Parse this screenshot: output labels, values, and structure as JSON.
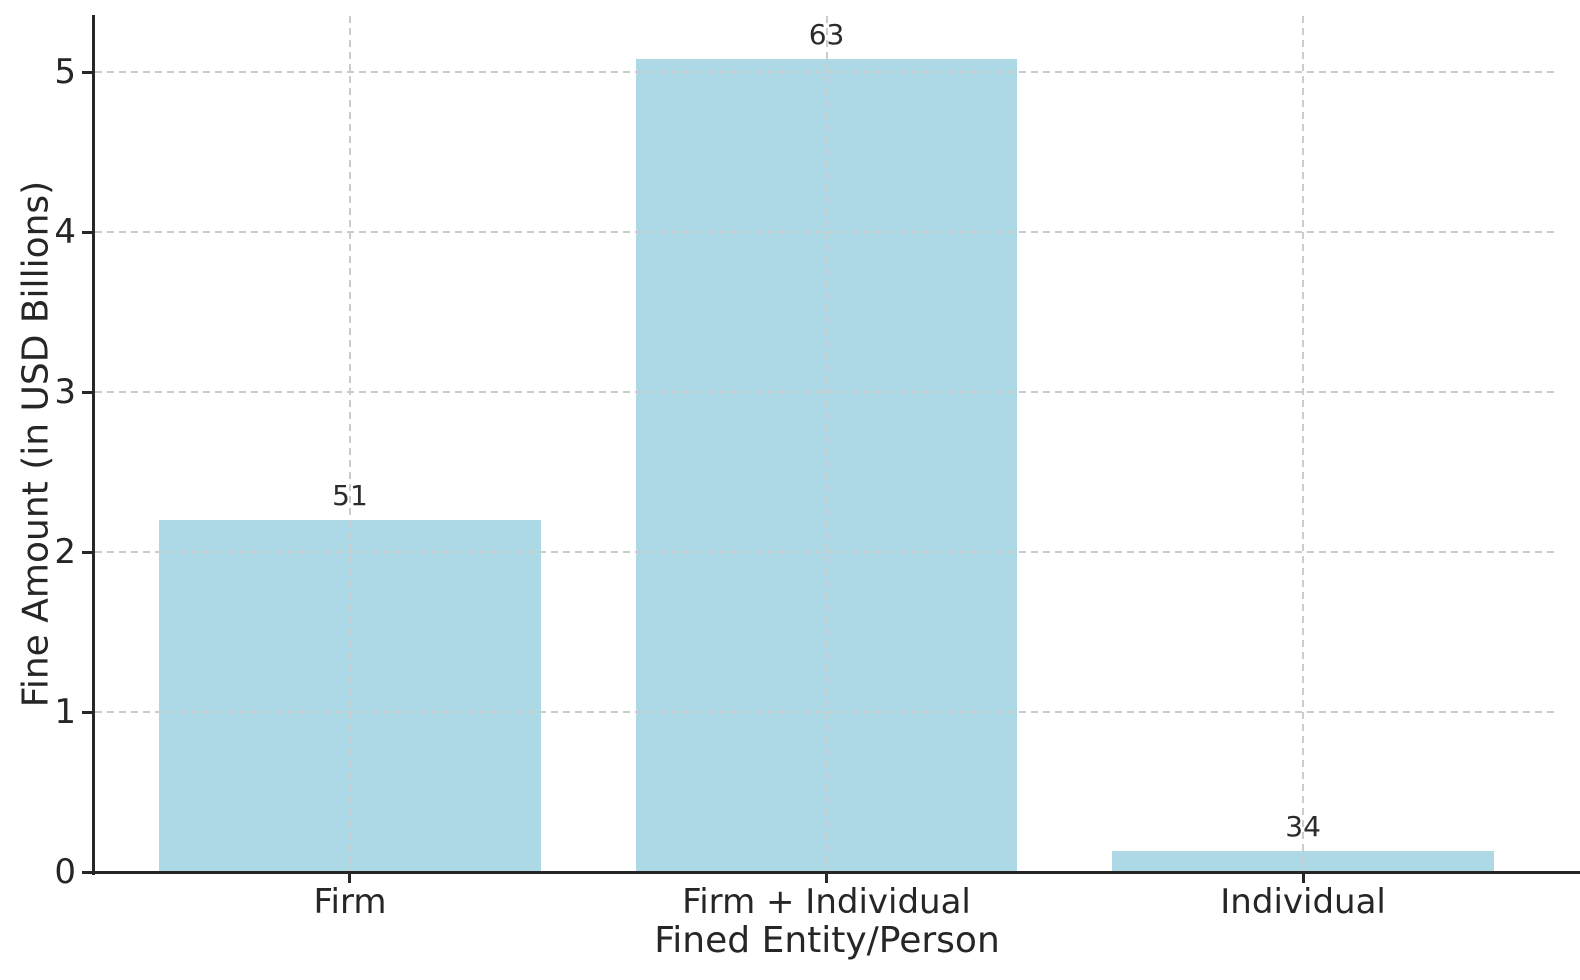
{
  "chart_data": {
    "type": "bar",
    "title": "",
    "xlabel": "Fined Entity/Person",
    "ylabel": "Fine Amount (in USD Billions)",
    "categories": [
      "Firm",
      "Firm + Individual",
      "Individual"
    ],
    "values": [
      2.2,
      5.08,
      0.13
    ],
    "bar_labels": [
      "51",
      "63",
      "34"
    ],
    "yticks": [
      0,
      1,
      2,
      3,
      4,
      5
    ],
    "ytick_labels": [
      "0",
      "1",
      "2",
      "3",
      "4",
      "5"
    ],
    "ylim": [
      0,
      5.35
    ],
    "xlim": [
      -0.535,
      2.537
    ],
    "bar_width": 0.8,
    "grid": "dashed horizontal and vertical gridlines, drawn above bars",
    "legend": "none",
    "colors": {
      "bar": "#ADD8E6",
      "grid": "#cccccc",
      "text": "#262626",
      "spine": "#262626",
      "background": "#ffffff"
    }
  }
}
